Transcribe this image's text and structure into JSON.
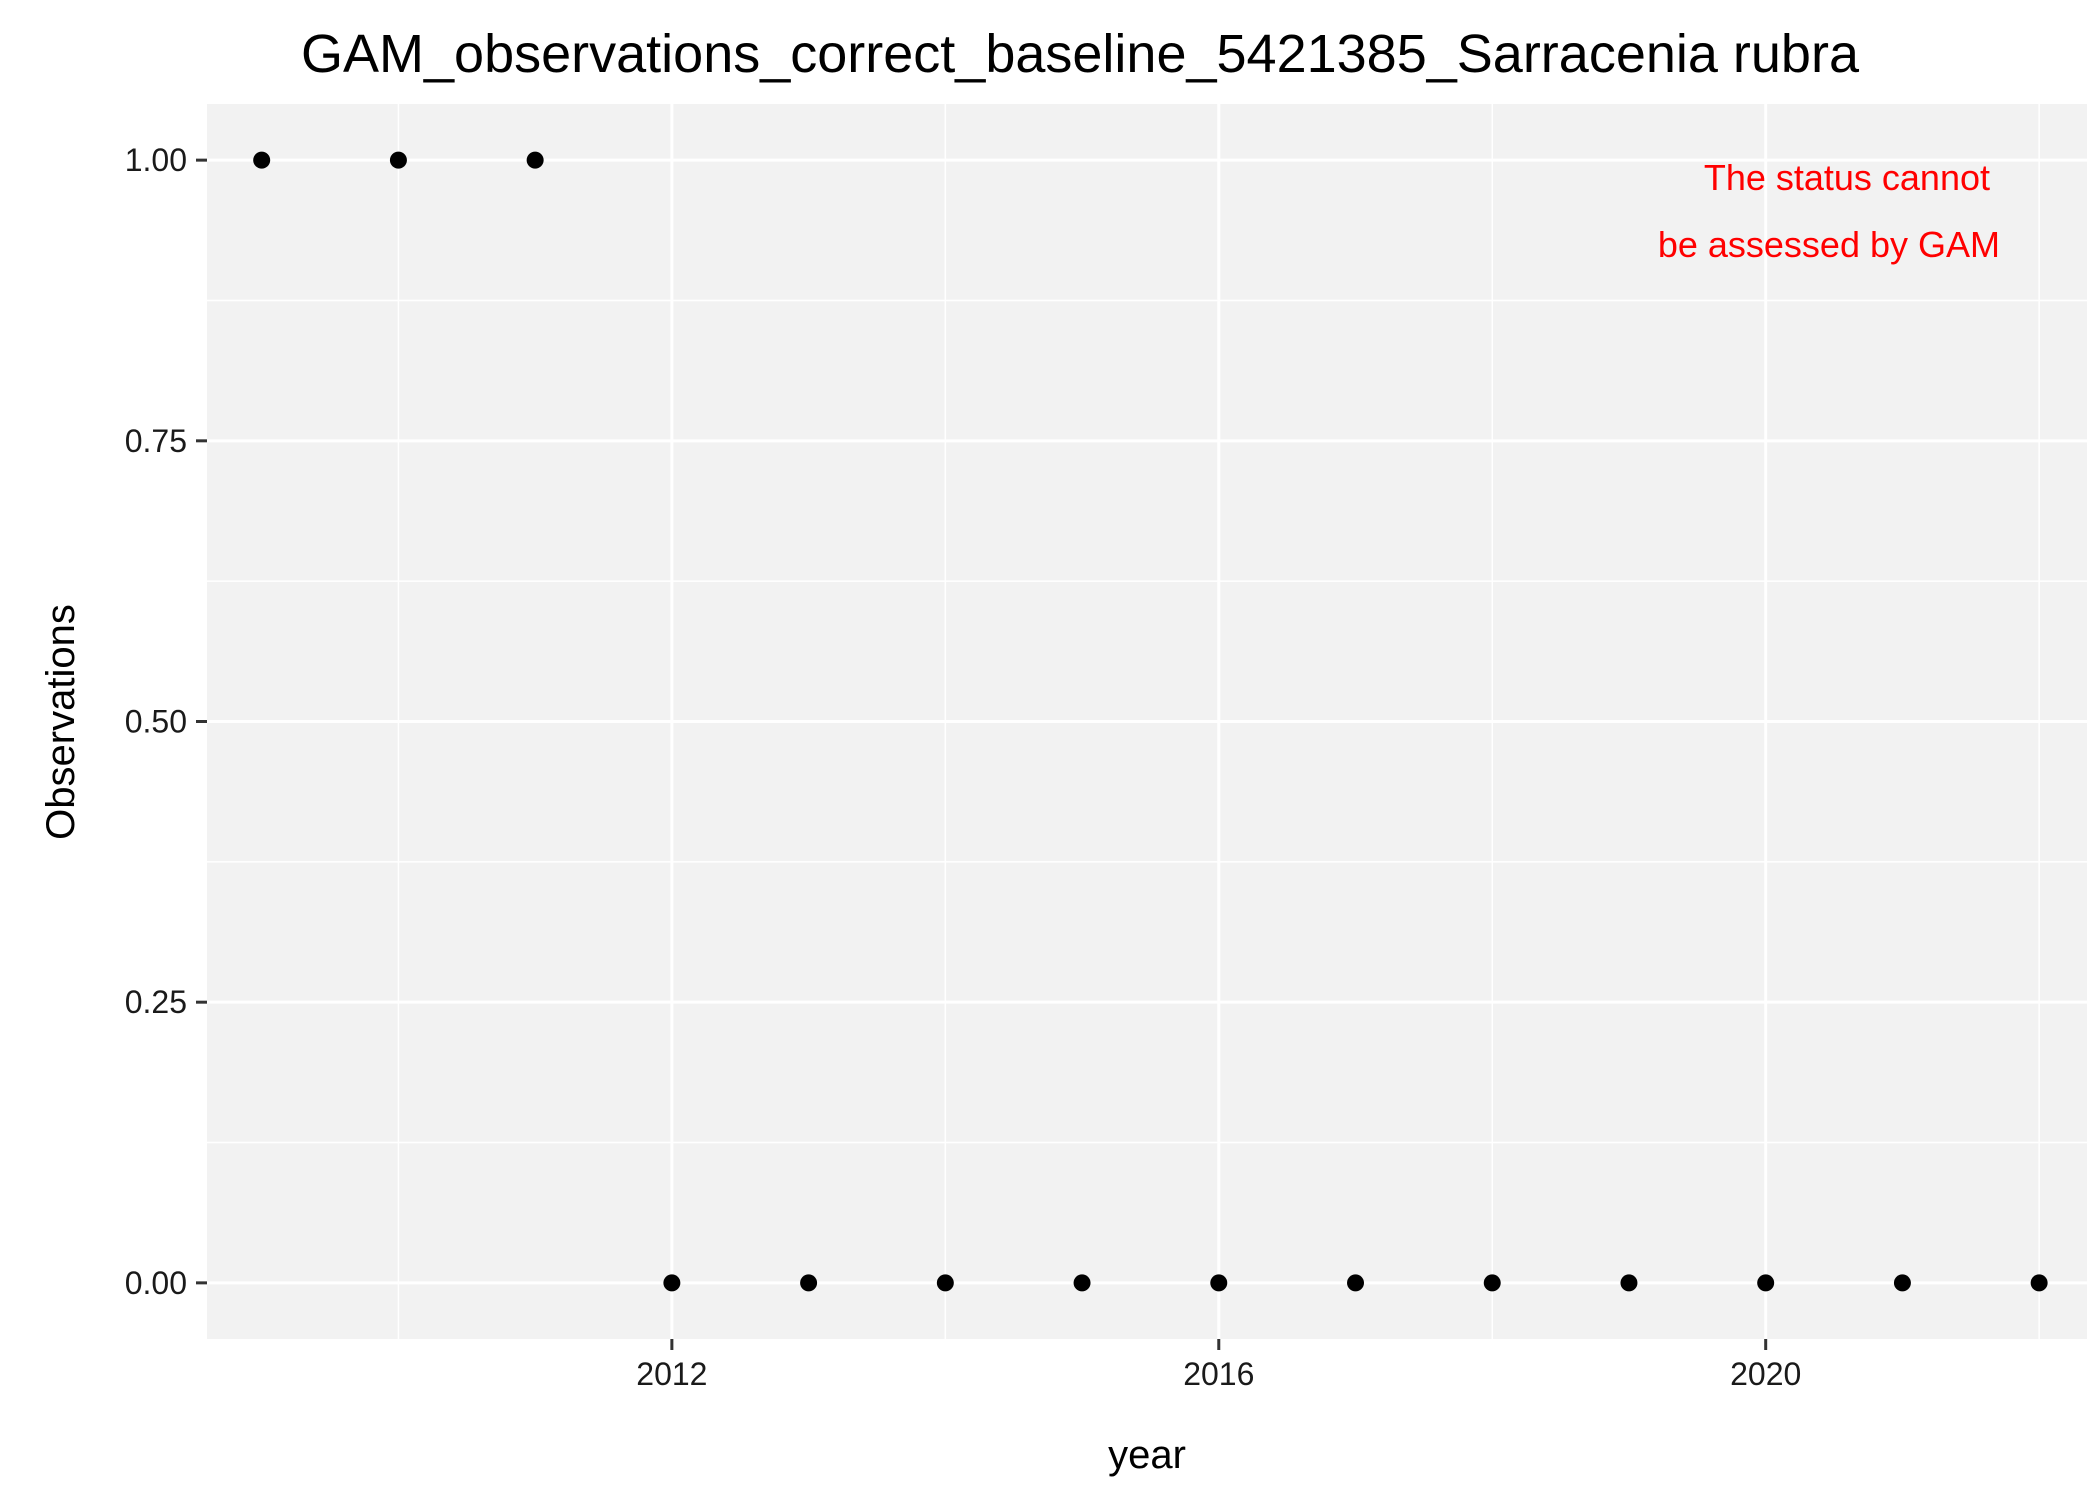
{
  "chart_data": {
    "type": "scatter",
    "title": "GAM_observations_correct_baseline_5421385_Sarracenia rubra",
    "xlabel": "year",
    "ylabel": "Observations",
    "x": [
      2009,
      2010,
      2011,
      2012,
      2013,
      2014,
      2015,
      2016,
      2017,
      2018,
      2019,
      2020,
      2021,
      2022
    ],
    "y": [
      1,
      1,
      1,
      0,
      0,
      0,
      0,
      0,
      0,
      0,
      0,
      0,
      0,
      0
    ],
    "xlim": [
      2008.6,
      2022.35
    ],
    "ylim": [
      -0.05,
      1.05
    ],
    "x_ticks": [
      2012,
      2016,
      2020
    ],
    "x_tick_labels": [
      "2012",
      "2016",
      "2020"
    ],
    "y_ticks": [
      0,
      0.25,
      0.5,
      0.75,
      1
    ],
    "y_tick_labels": [
      "0.00",
      "0.25",
      "0.50",
      "0.75",
      "1.00"
    ],
    "grid": true,
    "legend": "none",
    "annotation": {
      "lines": [
        "The status cannot",
        "be assessed by GAM"
      ],
      "placement": "top-right",
      "color": "#ff0000"
    },
    "colors": {
      "panel": "#f2f2f2",
      "grid": "#ffffff",
      "point": "#000000"
    }
  }
}
